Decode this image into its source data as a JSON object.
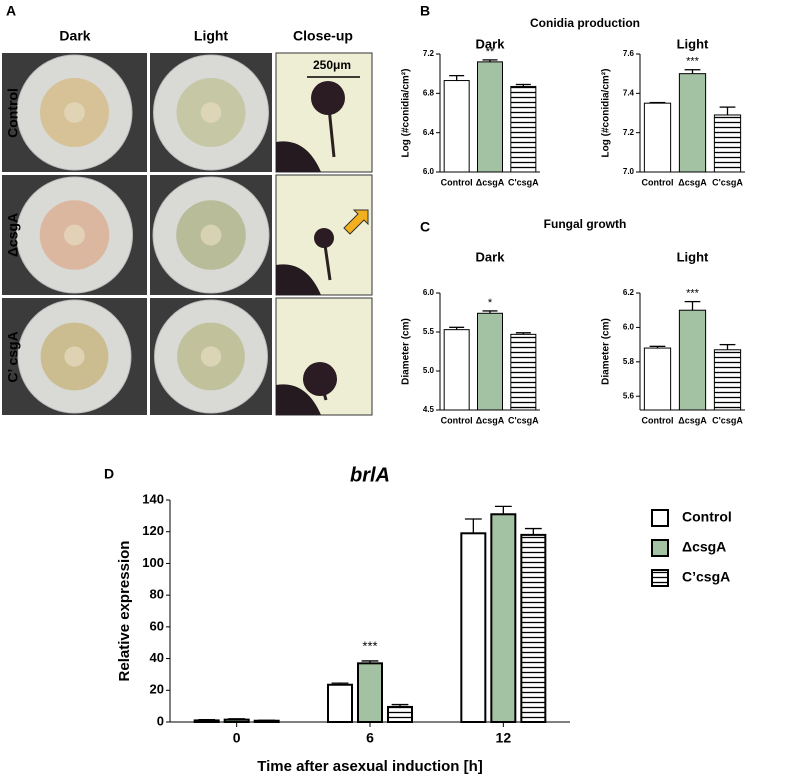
{
  "panel_a": {
    "letter": "A",
    "columns": [
      "Dark",
      "Light",
      "Close-up"
    ],
    "rows": [
      "Control",
      "ΔcsgA",
      "C’ csgA"
    ],
    "scale_bar": "250μm"
  },
  "panel_b": {
    "letter": "B",
    "title": "Conidia production"
  },
  "panel_c": {
    "letter": "C",
    "title": "Fungal growth"
  },
  "panel_d": {
    "letter": "D"
  },
  "chart_data": [
    {
      "type": "bar",
      "subtitle": "Dark",
      "y_label": "Log (#conidia/cm²)",
      "categories": [
        "Control",
        "ΔcsgA",
        "C'csgA"
      ],
      "values": [
        6.93,
        7.12,
        6.87
      ],
      "errors": [
        0.05,
        0.02,
        0.02
      ],
      "fills": [
        "#ffffff",
        "#a3c1a3",
        "#ffffff"
      ],
      "hatch": [
        false,
        false,
        true
      ],
      "annotations": [
        {
          "index": 1,
          "text": "**"
        }
      ],
      "ylim": [
        6.0,
        7.2
      ],
      "yticks": [
        {
          "value": 6,
          "label": "6.0"
        },
        6.4,
        6.8,
        7.2
      ]
    },
    {
      "type": "bar",
      "subtitle": "Light",
      "y_label": "Log (#conidia/cm²)",
      "categories": [
        "Control",
        "ΔcsgA",
        "C'csgA"
      ],
      "values": [
        7.35,
        7.5,
        7.29
      ],
      "errors": [
        0.003,
        0.02,
        0.04
      ],
      "fills": [
        "#ffffff",
        "#a3c1a3",
        "#ffffff"
      ],
      "hatch": [
        false,
        false,
        true
      ],
      "annotations": [
        {
          "index": 1,
          "text": "***"
        }
      ],
      "ylim": [
        7.0,
        7.6
      ],
      "yticks": [
        {
          "value": 7,
          "label": "7.0"
        },
        7.2,
        7.4,
        7.6
      ]
    },
    {
      "type": "bar",
      "subtitle": "Dark",
      "y_label": "Diameter (cm)",
      "categories": [
        "Control",
        "ΔcsgA",
        "C'csgA"
      ],
      "values": [
        5.53,
        5.74,
        5.47
      ],
      "errors": [
        0.03,
        0.03,
        0.02
      ],
      "fills": [
        "#ffffff",
        "#a3c1a3",
        "#ffffff"
      ],
      "hatch": [
        false,
        false,
        true
      ],
      "annotations": [
        {
          "index": 1,
          "text": "*"
        }
      ],
      "ylim": [
        4.5,
        6.0
      ],
      "yticks": [
        4.5,
        {
          "value": 5,
          "label": "5.0"
        },
        5.5,
        {
          "value": 6,
          "label": "6.0"
        }
      ]
    },
    {
      "type": "bar",
      "subtitle": "Light",
      "y_label": "Diameter (cm)",
      "categories": [
        "Control",
        "ΔcsgA",
        "C'csgA"
      ],
      "values": [
        5.88,
        6.1,
        5.87
      ],
      "errors": [
        0.01,
        0.05,
        0.03
      ],
      "fills": [
        "#ffffff",
        "#a3c1a3",
        "#ffffff"
      ],
      "hatch": [
        false,
        false,
        true
      ],
      "annotations": [
        {
          "index": 1,
          "text": "***"
        }
      ],
      "ylim": [
        5.52,
        6.2
      ],
      "yticks": [
        5.6,
        5.8,
        {
          "value": 6,
          "label": "6.0"
        },
        6.2
      ]
    },
    {
      "type": "grouped-bar",
      "title": "brlA",
      "x_label": "Time after asexual induction [h]",
      "y_label": "Relative expression",
      "categories": [
        "0",
        "6",
        "12"
      ],
      "series": [
        {
          "name": "Control",
          "color": "#ffffff",
          "hatch": false,
          "values": [
            1,
            23.5,
            119
          ],
          "errors": [
            0.5,
            1,
            9
          ]
        },
        {
          "name": "ΔcsgA",
          "color": "#a3c1a3",
          "hatch": false,
          "values": [
            1.5,
            37,
            131
          ],
          "errors": [
            0.5,
            1.5,
            5
          ]
        },
        {
          "name": "C’csgA",
          "color": "#ffffff",
          "hatch": true,
          "values": [
            0.8,
            9.5,
            118
          ],
          "errors": [
            0.3,
            1.5,
            4
          ]
        }
      ],
      "annotations": [
        {
          "series": 1,
          "index": 1,
          "text": "***"
        }
      ],
      "ylim": [
        0,
        140
      ],
      "yticks": [
        0,
        20,
        40,
        60,
        80,
        100,
        120,
        140
      ],
      "legend": "right"
    }
  ]
}
